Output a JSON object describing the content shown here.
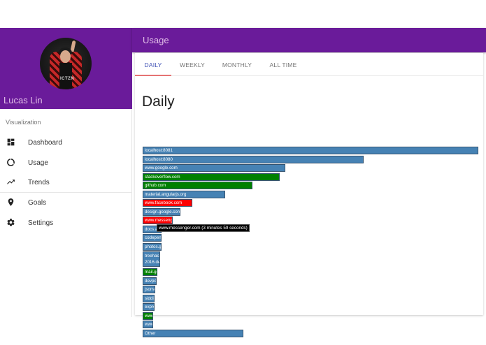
{
  "profile": {
    "name": "Lucas Lin"
  },
  "sidebar": {
    "section_label": "Visualization",
    "items": [
      {
        "label": "Dashboard",
        "icon": "dashboard-icon"
      },
      {
        "label": "Usage",
        "icon": "donut-icon"
      },
      {
        "label": "Trends",
        "icon": "trending-up-icon"
      },
      {
        "label": "Goals",
        "icon": "place-icon"
      },
      {
        "label": "Settings",
        "icon": "gear-icon"
      }
    ]
  },
  "toolbar": {
    "title": "Usage"
  },
  "tabs": [
    {
      "label": "DAILY",
      "active": true
    },
    {
      "label": "WEEKLY",
      "active": false
    },
    {
      "label": "MONTHLY",
      "active": false
    },
    {
      "label": "ALL TIME",
      "active": false
    }
  ],
  "main": {
    "heading": "Daily"
  },
  "colors": {
    "brand_purple": "#6a1b9a",
    "neutral_bar": "#4682b4",
    "productive_bar": "#008000",
    "unproductive_bar": "#ff0000",
    "tab_active": "#3f51b5",
    "tab_ink": "#e57373"
  },
  "tooltip": {
    "text": "www.messenger.com (3 minutes 59 seconds)"
  },
  "chart_data": {
    "type": "bar",
    "orientation": "horizontal",
    "title": "Daily",
    "xlabel": "",
    "ylabel": "",
    "grid": false,
    "legend": "none",
    "categories": [
      "localhost:8081",
      "localhost:8080",
      "www.google.com",
      "stackoverflow.com",
      "github.com",
      "material.angularjs.org",
      "www.facebook.com",
      "design.google.com",
      "www.messenger.com",
      "docs.a…",
      "codepen.…",
      "photos.go…",
      "treehacks 2016.de…",
      "mail.go…",
      "devpo…",
      "jsonvi…",
      "siddi…",
      "expre…",
      "www…",
      "www…",
      "Other"
    ],
    "values": [
      480,
      316,
      204,
      196,
      157,
      118,
      71,
      54,
      43,
      27,
      27,
      27,
      25,
      21,
      20,
      18,
      17,
      17,
      15,
      15,
      144
    ],
    "value_unit": "relative bar length (px)",
    "bar_colors": [
      "#4682b4",
      "#4682b4",
      "#4682b4",
      "#008000",
      "#008000",
      "#4682b4",
      "#ff0000",
      "#4682b4",
      "#ff0000",
      "#4682b4",
      "#4682b4",
      "#4682b4",
      "#4682b4",
      "#008000",
      "#4682b4",
      "#4682b4",
      "#4682b4",
      "#4682b4",
      "#008000",
      "#4682b4",
      "#4682b4"
    ],
    "annotations": [
      "www.messenger.com (3 minutes 59 seconds)"
    ]
  }
}
